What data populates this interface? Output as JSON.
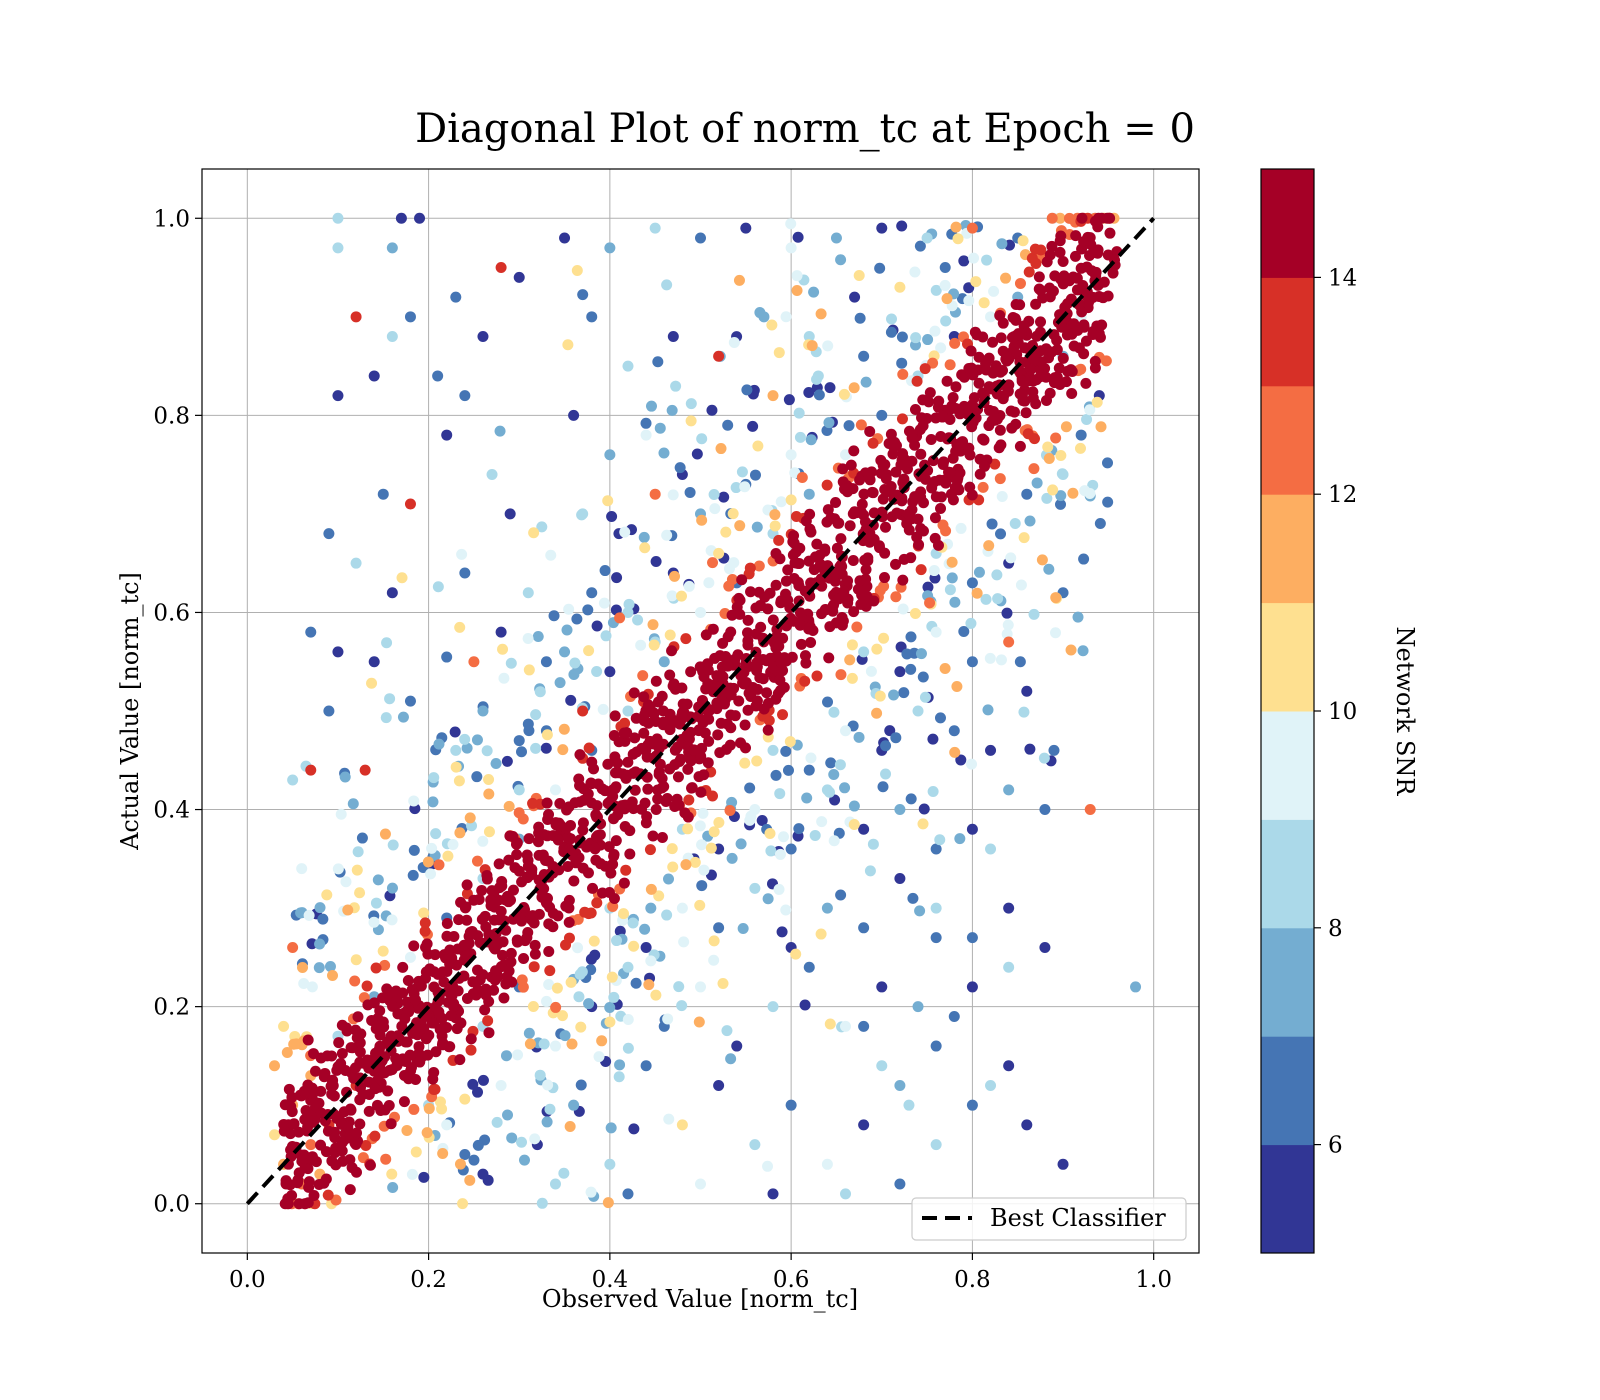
{
  "chart_data": {
    "type": "scatter",
    "title": "Diagonal Plot of norm_tc at Epoch = 0",
    "xlabel": "Observed Value [norm_tc]",
    "ylabel": "Actual Value [norm_tc]",
    "xlim": [
      -0.05,
      1.05
    ],
    "ylim": [
      -0.05,
      1.05
    ],
    "x_ticks": [
      "0.0",
      "0.2",
      "0.4",
      "0.6",
      "0.8",
      "1.0"
    ],
    "y_ticks": [
      "0.0",
      "0.2",
      "0.4",
      "0.6",
      "0.8",
      "1.0"
    ],
    "grid": true,
    "legend": {
      "placement": "lower-right",
      "entries": [
        "Best Classifier"
      ]
    },
    "reference_line": {
      "name": "Best Classifier",
      "x": [
        0,
        1
      ],
      "y": [
        0,
        1
      ],
      "style": "dashed",
      "color": "#000000"
    },
    "colorbar": {
      "label": "Network SNR",
      "range": [
        5,
        15
      ],
      "ticks": [
        "6",
        "8",
        "10",
        "12",
        "14"
      ],
      "bands": [
        "#313695",
        "#4575b4",
        "#74add1",
        "#abd9e9",
        "#e0f3f8",
        "#fee090",
        "#fdae61",
        "#f46d43",
        "#d73027",
        "#a50026"
      ]
    },
    "points": [
      [
        0.1,
        1.0,
        8.5
      ],
      [
        0.17,
        1.0,
        5.3
      ],
      [
        0.19,
        1.0,
        5.4
      ],
      [
        0.1,
        0.97,
        8.9
      ],
      [
        0.16,
        0.97,
        7.0
      ],
      [
        0.12,
        0.9,
        13.5
      ],
      [
        0.18,
        0.9,
        6.0
      ],
      [
        0.16,
        0.88,
        8.8
      ],
      [
        0.14,
        0.84,
        5.5
      ],
      [
        0.1,
        0.82,
        5.4
      ],
      [
        0.21,
        0.84,
        6.2
      ],
      [
        0.09,
        0.68,
        6.8
      ],
      [
        0.15,
        0.72,
        6.2
      ],
      [
        0.18,
        0.71,
        13.0
      ],
      [
        0.12,
        0.65,
        8.1
      ],
      [
        0.16,
        0.62,
        5.5
      ],
      [
        0.07,
        0.58,
        6.5
      ],
      [
        0.1,
        0.56,
        5.3
      ],
      [
        0.14,
        0.55,
        5.4
      ],
      [
        0.09,
        0.5,
        6.3
      ],
      [
        0.07,
        0.44,
        13.8
      ],
      [
        0.13,
        0.44,
        13.6
      ],
      [
        0.05,
        0.43,
        8.4
      ],
      [
        0.18,
        0.51,
        6.0
      ],
      [
        0.22,
        0.78,
        5.5
      ],
      [
        0.24,
        0.82,
        6.7
      ],
      [
        0.26,
        0.88,
        5.6
      ],
      [
        0.23,
        0.92,
        6.6
      ],
      [
        0.28,
        0.95,
        13.7
      ],
      [
        0.3,
        0.94,
        5.2
      ],
      [
        0.27,
        0.74,
        8.3
      ],
      [
        0.29,
        0.7,
        5.5
      ],
      [
        0.24,
        0.64,
        6.6
      ],
      [
        0.31,
        0.62,
        8.0
      ],
      [
        0.28,
        0.58,
        5.3
      ],
      [
        0.25,
        0.55,
        12.2
      ],
      [
        0.33,
        0.55,
        6.3
      ],
      [
        0.26,
        0.5,
        7.1
      ],
      [
        0.23,
        0.46,
        8.8
      ],
      [
        0.3,
        0.47,
        6.4
      ],
      [
        0.35,
        0.98,
        5.6
      ],
      [
        0.4,
        0.97,
        7.4
      ],
      [
        0.45,
        0.99,
        8.6
      ],
      [
        0.5,
        0.98,
        6.1
      ],
      [
        0.55,
        0.99,
        5.3
      ],
      [
        0.6,
        0.97,
        9.2
      ],
      [
        0.65,
        0.98,
        7.7
      ],
      [
        0.7,
        0.99,
        5.5
      ],
      [
        0.75,
        0.98,
        8.4
      ],
      [
        0.8,
        0.99,
        12.1
      ],
      [
        0.85,
        0.98,
        6.6
      ],
      [
        0.38,
        0.9,
        6.5
      ],
      [
        0.42,
        0.85,
        8.9
      ],
      [
        0.47,
        0.88,
        5.4
      ],
      [
        0.52,
        0.86,
        13.4
      ],
      [
        0.57,
        0.9,
        7.1
      ],
      [
        0.62,
        0.88,
        8.6
      ],
      [
        0.67,
        0.92,
        5.8
      ],
      [
        0.72,
        0.93,
        10.3
      ],
      [
        0.77,
        0.95,
        6.8
      ],
      [
        0.36,
        0.8,
        5.3
      ],
      [
        0.4,
        0.76,
        7.6
      ],
      [
        0.44,
        0.78,
        9.4
      ],
      [
        0.48,
        0.74,
        5.6
      ],
      [
        0.53,
        0.79,
        6.8
      ],
      [
        0.58,
        0.82,
        11.4
      ],
      [
        0.63,
        0.84,
        8.1
      ],
      [
        0.68,
        0.86,
        6.2
      ],
      [
        0.37,
        0.7,
        8.7
      ],
      [
        0.41,
        0.68,
        5.5
      ],
      [
        0.45,
        0.72,
        12.6
      ],
      [
        0.5,
        0.7,
        7.2
      ],
      [
        0.55,
        0.73,
        6.1
      ],
      [
        0.6,
        0.76,
        9.3
      ],
      [
        0.38,
        0.62,
        6.3
      ],
      [
        0.42,
        0.6,
        8.4
      ],
      [
        0.47,
        0.64,
        5.7
      ],
      [
        0.52,
        0.66,
        10.6
      ],
      [
        0.35,
        0.56,
        7.7
      ],
      [
        0.4,
        0.54,
        5.4
      ],
      [
        0.45,
        0.57,
        8.8
      ],
      [
        0.33,
        0.48,
        6.4
      ],
      [
        0.37,
        0.5,
        13.2
      ],
      [
        0.3,
        0.42,
        8.2
      ],
      [
        0.85,
        0.92,
        7.8
      ],
      [
        0.88,
        0.96,
        6.4
      ],
      [
        0.82,
        0.9,
        9.6
      ],
      [
        0.78,
        0.88,
        5.5
      ],
      [
        0.74,
        0.84,
        8.1
      ],
      [
        0.7,
        0.8,
        6.9
      ],
      [
        0.66,
        0.76,
        9.1
      ],
      [
        0.62,
        0.72,
        7.3
      ],
      [
        0.58,
        0.68,
        8.6
      ],
      [
        0.54,
        0.63,
        6.5
      ],
      [
        0.5,
        0.6,
        9.0
      ],
      [
        0.46,
        0.55,
        7.4
      ],
      [
        0.42,
        0.5,
        8.9
      ],
      [
        0.38,
        0.46,
        6.7
      ],
      [
        0.34,
        0.42,
        9.2
      ],
      [
        0.3,
        0.37,
        7.0
      ],
      [
        0.26,
        0.33,
        8.7
      ],
      [
        0.22,
        0.29,
        6.6
      ],
      [
        0.18,
        0.25,
        9.3
      ],
      [
        0.14,
        0.21,
        7.2
      ],
      [
        0.1,
        0.17,
        8.5
      ],
      [
        0.07,
        0.13,
        11.8
      ],
      [
        0.05,
        0.1,
        11.2
      ],
      [
        0.03,
        0.07,
        10.4
      ],
      [
        0.04,
        0.04,
        11.5
      ],
      [
        0.06,
        0.02,
        12.5
      ],
      [
        0.08,
        0.03,
        11.0
      ],
      [
        0.05,
        0.26,
        12.1
      ],
      [
        0.06,
        0.34,
        9.6
      ],
      [
        0.04,
        0.18,
        10.2
      ],
      [
        0.03,
        0.14,
        11.7
      ],
      [
        0.12,
        0.12,
        13.0
      ],
      [
        0.07,
        0.06,
        12.8
      ],
      [
        0.09,
        0.08,
        13.5
      ],
      [
        0.2,
        0.1,
        8.2
      ],
      [
        0.24,
        0.05,
        6.2
      ],
      [
        0.28,
        0.12,
        9.4
      ],
      [
        0.32,
        0.06,
        5.5
      ],
      [
        0.36,
        0.1,
        7.4
      ],
      [
        0.4,
        0.04,
        8.8
      ],
      [
        0.44,
        0.14,
        6.3
      ],
      [
        0.48,
        0.08,
        10.2
      ],
      [
        0.52,
        0.12,
        5.6
      ],
      [
        0.56,
        0.06,
        8.1
      ],
      [
        0.6,
        0.1,
        6.6
      ],
      [
        0.64,
        0.04,
        9.1
      ],
      [
        0.68,
        0.08,
        5.4
      ],
      [
        0.72,
        0.12,
        7.3
      ],
      [
        0.76,
        0.06,
        8.4
      ],
      [
        0.8,
        0.1,
        6.4
      ],
      [
        0.84,
        0.14,
        5.3
      ],
      [
        0.82,
        0.12,
        8.2
      ],
      [
        0.86,
        0.08,
        5.8
      ],
      [
        0.26,
        0.18,
        8.9
      ],
      [
        0.3,
        0.22,
        6.4
      ],
      [
        0.34,
        0.16,
        9.3
      ],
      [
        0.38,
        0.2,
        5.8
      ],
      [
        0.42,
        0.24,
        8.0
      ],
      [
        0.46,
        0.18,
        6.9
      ],
      [
        0.5,
        0.22,
        9.5
      ],
      [
        0.54,
        0.16,
        5.5
      ],
      [
        0.58,
        0.2,
        8.3
      ],
      [
        0.62,
        0.24,
        6.1
      ],
      [
        0.66,
        0.18,
        9.0
      ],
      [
        0.7,
        0.22,
        5.6
      ],
      [
        0.74,
        0.2,
        7.7
      ],
      [
        0.78,
        0.19,
        6.3
      ],
      [
        0.4,
        0.3,
        8.8
      ],
      [
        0.44,
        0.26,
        5.6
      ],
      [
        0.48,
        0.3,
        9.4
      ],
      [
        0.52,
        0.28,
        6.2
      ],
      [
        0.56,
        0.32,
        8.5
      ],
      [
        0.6,
        0.26,
        5.5
      ],
      [
        0.64,
        0.3,
        7.5
      ],
      [
        0.68,
        0.28,
        6.8
      ],
      [
        0.72,
        0.33,
        5.4
      ],
      [
        0.76,
        0.3,
        8.0
      ],
      [
        0.8,
        0.27,
        6.4
      ],
      [
        0.84,
        0.3,
        5.3
      ],
      [
        0.48,
        0.38,
        8.6
      ],
      [
        0.52,
        0.36,
        5.6
      ],
      [
        0.56,
        0.4,
        9.1
      ],
      [
        0.6,
        0.36,
        6.5
      ],
      [
        0.64,
        0.42,
        8.2
      ],
      [
        0.68,
        0.38,
        5.4
      ],
      [
        0.72,
        0.4,
        7.8
      ],
      [
        0.76,
        0.36,
        6.2
      ],
      [
        0.8,
        0.38,
        5.3
      ],
      [
        0.84,
        0.42,
        7.1
      ],
      [
        0.58,
        0.46,
        8.7
      ],
      [
        0.62,
        0.44,
        6.1
      ],
      [
        0.66,
        0.48,
        9.3
      ],
      [
        0.7,
        0.46,
        5.6
      ],
      [
        0.74,
        0.5,
        8.0
      ],
      [
        0.78,
        0.48,
        6.4
      ],
      [
        0.82,
        0.46,
        5.5
      ],
      [
        0.89,
        0.46,
        6.2
      ],
      [
        0.88,
        0.4,
        6.5
      ],
      [
        0.68,
        0.56,
        8.4
      ],
      [
        0.72,
        0.54,
        5.7
      ],
      [
        0.76,
        0.58,
        9.1
      ],
      [
        0.8,
        0.55,
        6.3
      ],
      [
        0.84,
        0.57,
        12.9
      ],
      [
        0.86,
        0.52,
        5.4
      ],
      [
        0.93,
        0.4,
        12.0
      ],
      [
        0.76,
        0.66,
        8.8
      ],
      [
        0.8,
        0.63,
        6.0
      ],
      [
        0.84,
        0.65,
        5.5
      ],
      [
        0.9,
        0.62,
        6.6
      ],
      [
        0.86,
        0.72,
        6.9
      ],
      [
        0.9,
        0.74,
        8.4
      ],
      [
        0.92,
        0.78,
        6.1
      ],
      [
        0.94,
        0.82,
        5.3
      ],
      [
        0.9,
        0.86,
        7.5
      ],
      [
        0.92,
        0.9,
        9.2
      ],
      [
        0.8,
        0.22,
        5.4
      ],
      [
        0.84,
        0.24,
        8.7
      ],
      [
        0.88,
        0.26,
        5.5
      ],
      [
        0.82,
        0.36,
        8.9
      ],
      [
        0.76,
        0.16,
        6.8
      ],
      [
        0.7,
        0.14,
        8.4
      ],
      [
        0.9,
        0.04,
        5.4
      ],
      [
        0.72,
        0.02,
        6.0
      ],
      [
        0.66,
        0.01,
        8.2
      ],
      [
        0.58,
        0.01,
        5.6
      ],
      [
        0.5,
        0.02,
        9.2
      ],
      [
        0.42,
        0.01,
        6.5
      ],
      [
        0.34,
        0.02,
        8.0
      ],
      [
        0.26,
        0.03,
        5.5
      ],
      [
        0.22,
        0.08,
        9.6
      ],
      [
        0.98,
        0.22,
        7.2
      ],
      [
        0.76,
        0.27,
        6.6
      ],
      [
        0.73,
        0.1,
        8.8
      ],
      [
        0.68,
        0.18,
        6.9
      ]
    ],
    "band_density": {
      "per_unit_x": 1700,
      "half_width_sd": 0.055
    }
  }
}
